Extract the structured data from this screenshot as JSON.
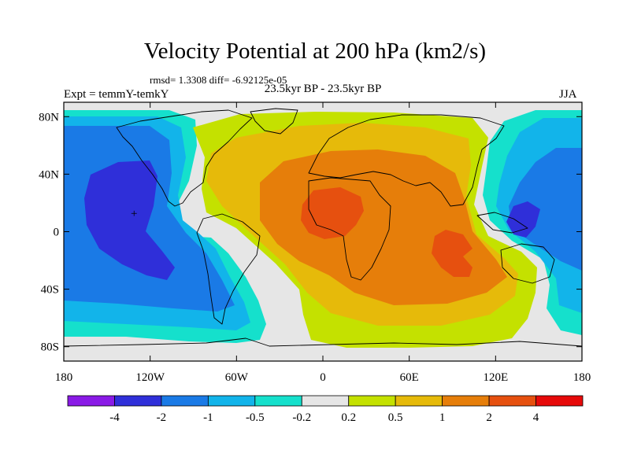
{
  "title": "Velocity Potential at 200 hPa (km2/s)",
  "stats_line": "rmsd= 1.3308 diff= -6.92125e-05",
  "left_label": "Expt = temmY-temkY",
  "center_label": "23.5kyr BP - 23.5kyr BP",
  "right_label": "JJA",
  "chart_data": {
    "type": "heatmap",
    "projection": "cylindrical-equidistant",
    "xlim": [
      -180,
      180
    ],
    "ylim": [
      -90,
      90
    ],
    "x_ticks": [
      -180,
      -120,
      -60,
      0,
      60,
      120,
      180
    ],
    "x_tick_labels": [
      "180",
      "120W",
      "60W",
      "0",
      "60E",
      "120E",
      "180"
    ],
    "y_ticks": [
      80,
      40,
      0,
      -40,
      -80
    ],
    "y_tick_labels": [
      "80N",
      "40N",
      "0",
      "40S",
      "80S"
    ],
    "colorbar": {
      "orientation": "horizontal",
      "levels": [
        -4,
        -2,
        -1,
        -0.5,
        -0.2,
        0.2,
        0.5,
        1,
        2,
        4
      ],
      "level_labels": [
        "-4",
        "-2",
        "-1",
        "-0.5",
        "-0.2",
        "0.2",
        "0.5",
        "1",
        "2",
        "4"
      ],
      "colors": [
        "#8a1ae6",
        "#2f2fd9",
        "#1a7ae6",
        "#12b4ea",
        "#15e0cc",
        "#e6e6e6",
        "#c4e100",
        "#e6ba0a",
        "#e67e0a",
        "#e6500f",
        "#e60a0a"
      ]
    },
    "features": [
      {
        "name": "eastern Pacific minimum",
        "level": "-2",
        "center": [
          -120,
          5
        ]
      },
      {
        "name": "western Pacific minimum",
        "level": "-2",
        "center": [
          140,
          10
        ]
      },
      {
        "name": "West Africa maximum",
        "level": "2",
        "center": [
          15,
          15
        ]
      },
      {
        "name": "Indian Ocean maximum",
        "level": "2",
        "center": [
          75,
          -15
        ]
      }
    ]
  }
}
